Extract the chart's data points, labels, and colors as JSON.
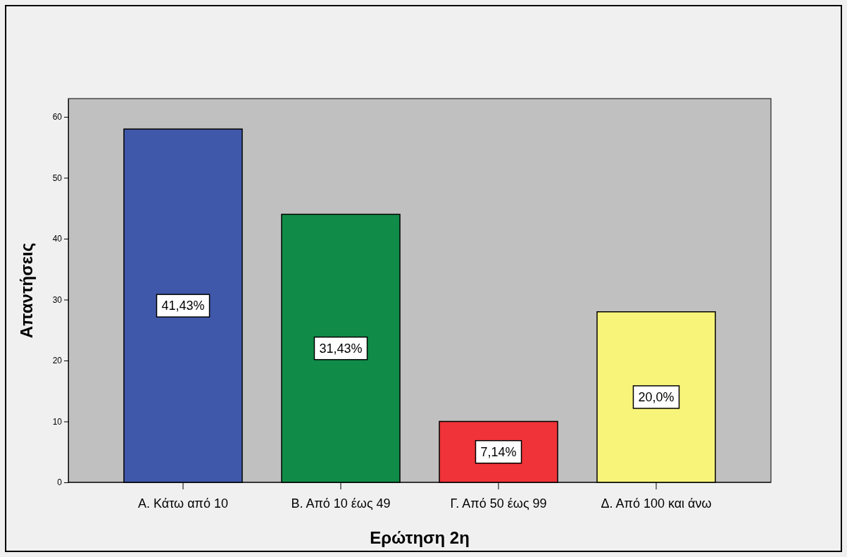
{
  "chart_data": {
    "type": "bar",
    "xlabel": "Ερώτηση 2η",
    "ylabel": "Απαντήσεις",
    "categories": [
      "Α. Κάτω από 10",
      "Β. Από 10 έως 49",
      "Γ. Από 50 έως 99",
      "Δ. Από 100 και άνω"
    ],
    "values": [
      58,
      44,
      10,
      28
    ],
    "colors": [
      "#3f58aa",
      "#108c48",
      "#ef3338",
      "#f8f47a"
    ],
    "annotations": [
      "41,43%",
      "31,43%",
      "7,14%",
      "20,0%"
    ],
    "ylim": [
      0,
      63
    ],
    "yticks": [
      0,
      10,
      20,
      30,
      40,
      50,
      60
    ]
  }
}
